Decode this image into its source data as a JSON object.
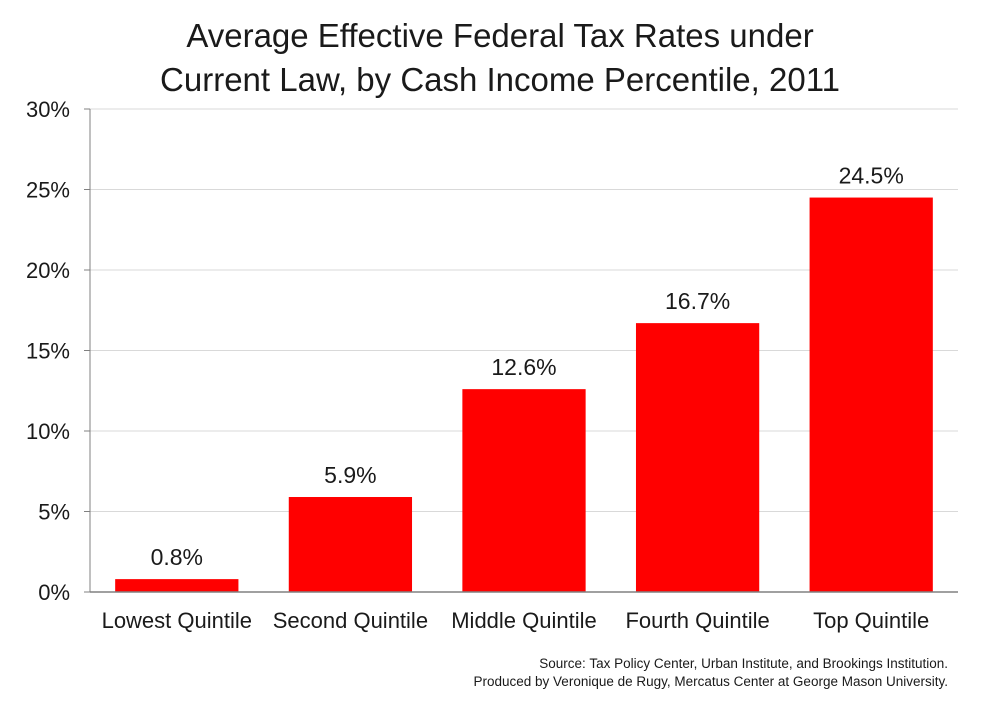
{
  "chart_data": {
    "type": "bar",
    "title": [
      "Average Effective Federal Tax Rates under",
      "Current Law, by Cash Income Percentile, 2011"
    ],
    "categories": [
      "Lowest Quintile",
      "Second Quintile",
      "Middle Quintile",
      "Fourth Quintile",
      "Top Quintile"
    ],
    "values": [
      0.8,
      5.9,
      12.6,
      16.7,
      24.5
    ],
    "data_labels": [
      "0.8%",
      "5.9%",
      "12.6%",
      "16.7%",
      "24.5%"
    ],
    "ylim": [
      0,
      30
    ],
    "yticks": [
      0,
      5,
      10,
      15,
      20,
      25,
      30
    ],
    "ytick_labels": [
      "0%",
      "5%",
      "10%",
      "15%",
      "20%",
      "25%",
      "30%"
    ],
    "grid": true,
    "bar_color": "#ff0000"
  },
  "source": {
    "line1": "Source: Tax Policy Center, Urban Institute, and Brookings Institution.",
    "line2": "Produced by Veronique de Rugy, Mercatus Center at George Mason University."
  }
}
